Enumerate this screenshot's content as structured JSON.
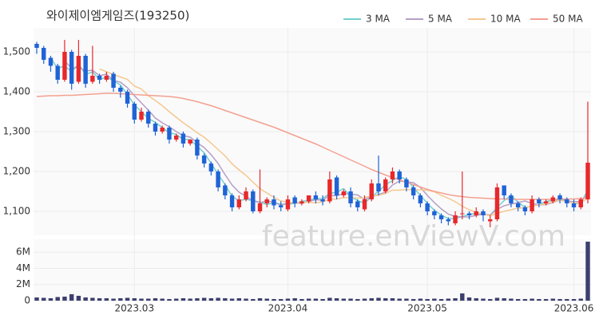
{
  "chart_data": {
    "type": "candlestick",
    "title": "와이제이엠게임즈(193250)",
    "watermark": "feature.enViewV.com",
    "categories": [
      null,
      null,
      null,
      null,
      null,
      null,
      null,
      null,
      null,
      null,
      null,
      null,
      null,
      null,
      "2023.03",
      null,
      null,
      null,
      null,
      null,
      null,
      null,
      null,
      null,
      null,
      null,
      null,
      null,
      null,
      null,
      null,
      null,
      null,
      null,
      null,
      null,
      "2023.04",
      null,
      null,
      null,
      null,
      null,
      null,
      null,
      null,
      null,
      null,
      null,
      null,
      null,
      null,
      null,
      null,
      null,
      null,
      null,
      "2023.05",
      null,
      null,
      null,
      null,
      null,
      null,
      null,
      null,
      null,
      null,
      null,
      null,
      null,
      null,
      null,
      null,
      null,
      null,
      null,
      null,
      "2023.06",
      null,
      null
    ],
    "open": [
      1520,
      1510,
      1485,
      1465,
      1430,
      1500,
      1425,
      1490,
      1425,
      1440,
      1430,
      1445,
      1410,
      1400,
      1370,
      1330,
      1350,
      1320,
      1300,
      1310,
      1280,
      1295,
      1270,
      1280,
      1240,
      1220,
      1200,
      1165,
      1140,
      1110,
      1130,
      1150,
      1100,
      1120,
      1130,
      1115,
      1105,
      1135,
      1120,
      1125,
      1140,
      1130,
      1125,
      1185,
      1140,
      1150,
      1125,
      1105,
      1130,
      1170,
      1150,
      1180,
      1200,
      1180,
      1160,
      1140,
      1120,
      1100,
      1090,
      1080,
      1070,
      1095,
      1095,
      1090,
      1100,
      1075,
      1080,
      1165,
      1140,
      1120,
      1110,
      1100,
      1130,
      1120,
      1125,
      1140,
      1130,
      1120,
      1110,
      1130
    ],
    "high": [
      1525,
      1515,
      1490,
      1470,
      1530,
      1505,
      1530,
      1495,
      1515,
      1445,
      1450,
      1450,
      1415,
      1405,
      1375,
      1360,
      1355,
      1325,
      1315,
      1315,
      1295,
      1300,
      1280,
      1285,
      1245,
      1225,
      1205,
      1170,
      1145,
      1140,
      1160,
      1155,
      1205,
      1135,
      1140,
      1125,
      1140,
      1140,
      1130,
      1135,
      1150,
      1140,
      1200,
      1190,
      1155,
      1160,
      1130,
      1140,
      1180,
      1240,
      1185,
      1210,
      1205,
      1185,
      1165,
      1145,
      1125,
      1105,
      1095,
      1085,
      1100,
      1200,
      1100,
      1110,
      1105,
      1090,
      1170,
      1165,
      1145,
      1125,
      1115,
      1140,
      1135,
      1130,
      1140,
      1145,
      1135,
      1130,
      1135,
      1375
    ],
    "low": [
      1495,
      1470,
      1450,
      1420,
      1425,
      1405,
      1420,
      1410,
      1420,
      1420,
      1425,
      1400,
      1385,
      1360,
      1320,
      1325,
      1310,
      1290,
      1295,
      1270,
      1275,
      1260,
      1265,
      1230,
      1210,
      1190,
      1150,
      1130,
      1100,
      1105,
      1125,
      1095,
      1095,
      1110,
      1105,
      1100,
      1100,
      1110,
      1115,
      1120,
      1120,
      1115,
      1120,
      1130,
      1135,
      1110,
      1100,
      1100,
      1125,
      1140,
      1145,
      1170,
      1170,
      1150,
      1130,
      1110,
      1090,
      1080,
      1070,
      1065,
      1065,
      1080,
      1080,
      1085,
      1075,
      1060,
      1075,
      1130,
      1110,
      1100,
      1090,
      1095,
      1110,
      1115,
      1120,
      1120,
      1110,
      1100,
      1105,
      1120
    ],
    "close": [
      1510,
      1480,
      1465,
      1430,
      1500,
      1420,
      1490,
      1420,
      1440,
      1430,
      1440,
      1410,
      1400,
      1370,
      1330,
      1350,
      1320,
      1300,
      1310,
      1280,
      1290,
      1270,
      1280,
      1240,
      1220,
      1200,
      1160,
      1140,
      1110,
      1130,
      1150,
      1100,
      1120,
      1130,
      1115,
      1110,
      1130,
      1120,
      1125,
      1140,
      1130,
      1125,
      1180,
      1140,
      1150,
      1120,
      1110,
      1130,
      1170,
      1150,
      1180,
      1200,
      1180,
      1160,
      1140,
      1120,
      1100,
      1090,
      1080,
      1075,
      1090,
      1095,
      1090,
      1100,
      1090,
      1080,
      1160,
      1140,
      1120,
      1110,
      1100,
      1130,
      1120,
      1125,
      1135,
      1130,
      1120,
      1110,
      1130,
      1222
    ],
    "up_color": "#e8282b",
    "down_color": "#1f63d6",
    "volume": [
      400000,
      350000,
      300000,
      450000,
      500000,
      800000,
      600000,
      400000,
      350000,
      300000,
      300000,
      250000,
      300000,
      350000,
      300000,
      250000,
      250000,
      300000,
      250000,
      200000,
      250000,
      300000,
      250000,
      300000,
      350000,
      300000,
      350000,
      300000,
      250000,
      300000,
      250000,
      200000,
      300000,
      250000,
      200000,
      200000,
      250000,
      300000,
      200000,
      250000,
      250000,
      200000,
      350000,
      300000,
      250000,
      250000,
      200000,
      250000,
      300000,
      350000,
      300000,
      300000,
      250000,
      250000,
      200000,
      250000,
      200000,
      250000,
      200000,
      250000,
      300000,
      900000,
      400000,
      300000,
      250000,
      200000,
      350000,
      300000,
      250000,
      200000,
      200000,
      250000,
      200000,
      200000,
      250000,
      200000,
      200000,
      200000,
      250000,
      7300000
    ],
    "volume_color": "#3c3f6e",
    "series": [
      {
        "name": "3 MA",
        "color": "#72cfd0",
        "values": [
          null,
          null,
          1485,
          1458,
          1465,
          1450,
          1470,
          1443,
          1450,
          1430,
          1437,
          1427,
          1417,
          1393,
          1367,
          1350,
          1333,
          1323,
          1310,
          1297,
          1293,
          1280,
          1280,
          1263,
          1247,
          1220,
          1193,
          1167,
          1137,
          1127,
          1130,
          1127,
          1123,
          1117,
          1122,
          1118,
          1118,
          1120,
          1125,
          1128,
          1132,
          1132,
          1145,
          1148,
          1157,
          1137,
          1127,
          1120,
          1137,
          1150,
          1167,
          1177,
          1187,
          1180,
          1160,
          1140,
          1120,
          1103,
          1090,
          1082,
          1082,
          1087,
          1092,
          1095,
          1093,
          1090,
          1110,
          1127,
          1140,
          1123,
          1110,
          1113,
          1117,
          1125,
          1127,
          1130,
          1128,
          1120,
          1120,
          1154
        ]
      },
      {
        "name": "5 MA",
        "color": "#b49fc8",
        "values": [
          null,
          null,
          null,
          null,
          1477,
          1459,
          1461,
          1452,
          1454,
          1440,
          1444,
          1428,
          1424,
          1410,
          1390,
          1372,
          1354,
          1334,
          1322,
          1312,
          1300,
          1290,
          1286,
          1272,
          1260,
          1242,
          1220,
          1192,
          1166,
          1148,
          1138,
          1126,
          1122,
          1126,
          1123,
          1115,
          1121,
          1121,
          1120,
          1125,
          1129,
          1128,
          1140,
          1139,
          1145,
          1143,
          1141,
          1130,
          1136,
          1142,
          1148,
          1166,
          1176,
          1174,
          1172,
          1160,
          1140,
          1122,
          1106,
          1093,
          1087,
          1086,
          1086,
          1090,
          1093,
          1091,
          1105,
          1114,
          1118,
          1122,
          1126,
          1120,
          1116,
          1117,
          1122,
          1128,
          1126,
          1124,
          1125,
          1142
        ]
      },
      {
        "name": "10 MA",
        "color": "#f5c890",
        "values": [
          null,
          null,
          null,
          null,
          null,
          null,
          null,
          null,
          null,
          1457,
          1450,
          1443,
          1437,
          1431,
          1414,
          1407,
          1390,
          1378,
          1365,
          1350,
          1336,
          1322,
          1310,
          1297,
          1286,
          1271,
          1255,
          1239,
          1219,
          1204,
          1190,
          1173,
          1157,
          1146,
          1135,
          1126,
          1123,
          1121,
          1122,
          1123,
          1121,
          1124,
          1130,
          1131,
          1134,
          1135,
          1133,
          1134,
          1139,
          1140,
          1145,
          1153,
          1153,
          1155,
          1154,
          1154,
          1153,
          1149,
          1140,
          1133,
          1124,
          1113,
          1104,
          1098,
          1093,
          1089,
          1095,
          1100,
          1104,
          1108,
          1109,
          1113,
          1116,
          1119,
          1123,
          1128,
          1124,
          1121,
          1122,
          1133
        ]
      },
      {
        "name": "50 MA",
        "color": "#f4a090",
        "values": [
          1388,
          1389,
          1390,
          1390,
          1391,
          1391,
          1392,
          1393,
          1394,
          1395,
          1396,
          1396,
          1395,
          1394,
          1393,
          1392,
          1391,
          1390,
          1389,
          1388,
          1386,
          1383,
          1379,
          1375,
          1370,
          1365,
          1359,
          1353,
          1347,
          1341,
          1335,
          1329,
          1323,
          1317,
          1311,
          1304,
          1297,
          1290,
          1283,
          1276,
          1269,
          1261,
          1253,
          1245,
          1237,
          1229,
          1221,
          1213,
          1205,
          1198,
          1191,
          1185,
          1179,
          1173,
          1167,
          1161,
          1155,
          1150,
          1146,
          1142,
          1139,
          1137,
          1135,
          1134,
          1133,
          1132,
          1131,
          1131,
          1130,
          1130,
          1130,
          1130,
          1130,
          1130,
          1130,
          1131,
          1131,
          1131,
          1132,
          1135
        ]
      }
    ],
    "ylim": [
      1040,
      1560
    ],
    "yticks": [
      {
        "value": 1100,
        "label": "1,100"
      },
      {
        "value": 1200,
        "label": "1,200"
      },
      {
        "value": 1300,
        "label": "1,300"
      },
      {
        "value": 1400,
        "label": "1,400"
      },
      {
        "value": 1500,
        "label": "1,500"
      }
    ],
    "volume_ylim": [
      0,
      7600000
    ],
    "volume_yticks": [
      0,
      {
        "value": 2000000,
        "label": "2M"
      },
      {
        "value": 4000000,
        "label": "4M"
      },
      {
        "value": 6000000,
        "label": "6M"
      }
    ],
    "grid": true
  }
}
